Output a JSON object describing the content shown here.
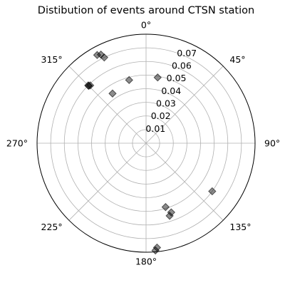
{
  "chart_data": {
    "type": "scatter",
    "projection": "polar",
    "title": "Distibution of events around CTSN station",
    "theta_zero_location": "N",
    "theta_direction": "clockwise",
    "theta_tick_labels": [
      "0°",
      "45°",
      "90°",
      "135°",
      "180°",
      "225°",
      "270°",
      "315°"
    ],
    "theta_ticks_deg": [
      0,
      45,
      90,
      135,
      180,
      225,
      270,
      315
    ],
    "r_tick_labels": [
      "0.01",
      "0.02",
      "0.03",
      "0.04",
      "0.05",
      "0.06",
      "0.07"
    ],
    "r_ticks": [
      0.01,
      0.02,
      0.03,
      0.04,
      0.05,
      0.06,
      0.07
    ],
    "r_tick_angle_deg": 22.5,
    "rlim": [
      0,
      0.08
    ],
    "grid": true,
    "marker": "diamond",
    "marker_color": "#000000",
    "points": [
      {
        "theta": 334,
        "r": 0.07
      },
      {
        "theta": 331,
        "r": 0.074
      },
      {
        "theta": 333,
        "r": 0.073
      },
      {
        "theta": 315,
        "r": 0.06
      },
      {
        "theta": 316,
        "r": 0.059
      },
      {
        "theta": 315,
        "r": 0.0595
      },
      {
        "theta": 326,
        "r": 0.044
      },
      {
        "theta": 345,
        "r": 0.048
      },
      {
        "theta": 10,
        "r": 0.049
      },
      {
        "theta": 126,
        "r": 0.06
      },
      {
        "theta": 163,
        "r": 0.049
      },
      {
        "theta": 162,
        "r": 0.056
      },
      {
        "theta": 160,
        "r": 0.054
      },
      {
        "theta": 174,
        "r": 0.077
      },
      {
        "theta": 175,
        "r": 0.079
      }
    ]
  }
}
